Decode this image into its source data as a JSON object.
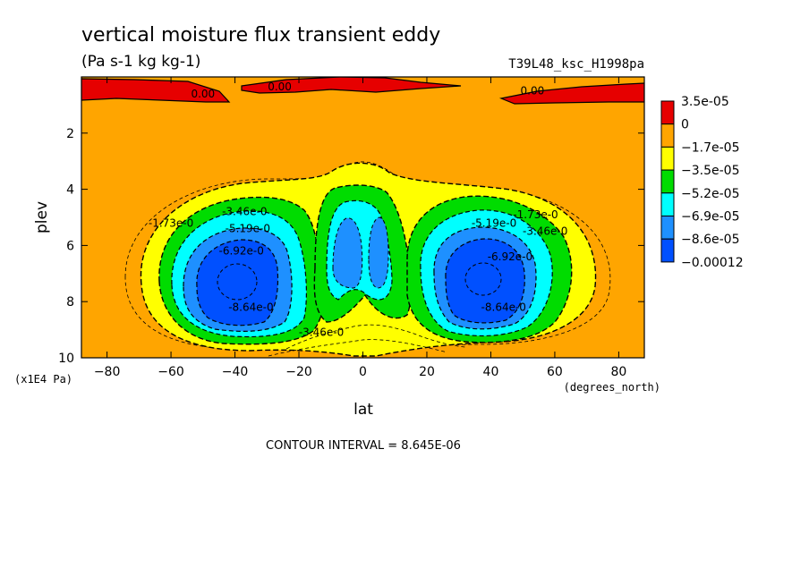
{
  "chart_data": {
    "type": "heatmap",
    "title": "vertical moisture flux transient eddy",
    "units": "(Pa s-1 kg kg-1)",
    "run_label": "T39L48_ksc_H1998pa",
    "xlabel": "lat",
    "ylabel": "plev",
    "x_unit_label": "(degrees_north)",
    "y_unit_label": "(x1E4 Pa)",
    "xlim": [
      -88,
      88
    ],
    "ylim": [
      0,
      10
    ],
    "y_inverted": true,
    "x_ticks": [
      -80,
      -60,
      -40,
      -20,
      0,
      20,
      40,
      60,
      80
    ],
    "y_ticks": [
      2,
      4,
      6,
      8,
      10
    ],
    "legend": {
      "placement": "right",
      "levels": [
        "3.5e-05",
        "0",
        "-1.7e-05",
        "-3.5e-05",
        "-5.2e-05",
        "-6.9e-05",
        "-8.6e-05",
        "-0.00012"
      ],
      "colors": [
        "#e60000",
        "#ffa500",
        "#ffff00",
        "#00dc00",
        "#00ffff",
        "#1e90ff",
        "#0050ff"
      ]
    },
    "contour_labels": [
      {
        "text": "0.00",
        "x": -50,
        "y": 0.6
      },
      {
        "text": "0.00",
        "x": -26,
        "y": 0.35
      },
      {
        "text": "0.00",
        "x": 53,
        "y": 0.5
      },
      {
        "text": "-1.73e-0",
        "x": -60,
        "y": 5.2
      },
      {
        "text": "-3.46e-0",
        "x": -37,
        "y": 4.8
      },
      {
        "text": "-5.19e-0",
        "x": -36,
        "y": 5.4
      },
      {
        "text": "-6.92e-0",
        "x": -38,
        "y": 6.2
      },
      {
        "text": "-8.64e-0",
        "x": -35,
        "y": 8.2
      },
      {
        "text": "-3.46e-0",
        "x": -13,
        "y": 9.1
      },
      {
        "text": "-1.73e-0",
        "x": 54,
        "y": 4.9
      },
      {
        "text": "-3.46e-0",
        "x": 57,
        "y": 5.5
      },
      {
        "text": "-5.19e-0",
        "x": 41,
        "y": 5.2
      },
      {
        "text": "-6.92e-0",
        "x": 46,
        "y": 6.4
      },
      {
        "text": "-8.64e-0",
        "x": 44,
        "y": 8.2
      }
    ],
    "contour_interval_text": "CONTOUR INTERVAL = 8.645E-06"
  }
}
